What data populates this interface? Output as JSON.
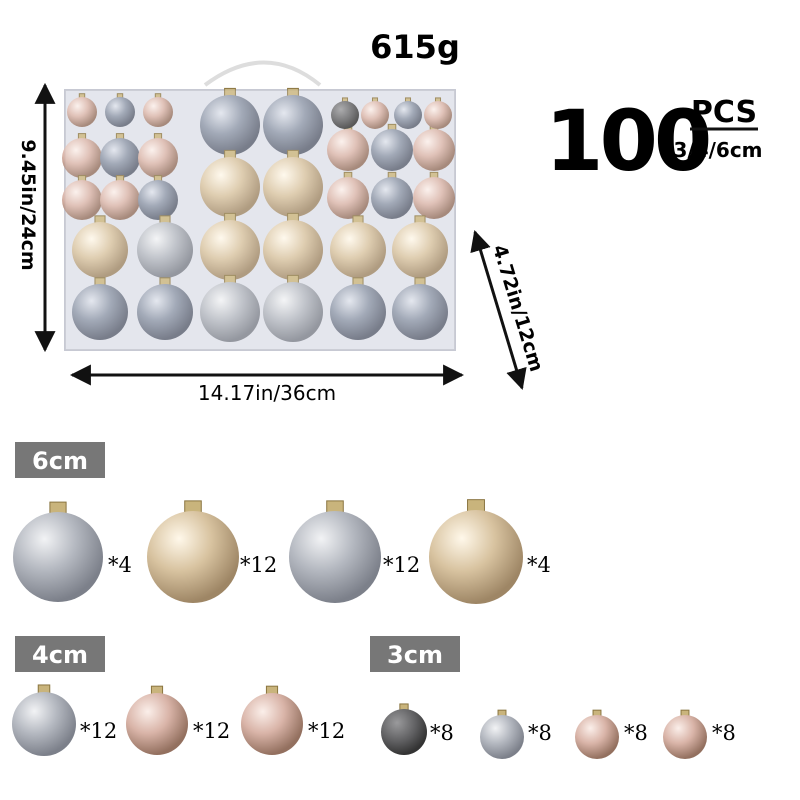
{
  "weight": "615g",
  "count": "100",
  "unit": "PCS",
  "sizes": "3/4/6cm",
  "dimensions": {
    "height": "9.45in/24cm",
    "width": "14.17in/36cm",
    "depth": "4.72in/12cm"
  },
  "sections": [
    {
      "title": "6cm",
      "items": [
        "*4",
        "*12",
        "*12",
        "*4"
      ]
    },
    {
      "title": "4cm",
      "items": [
        "*12",
        "*12",
        "*12"
      ]
    },
    {
      "title": "3cm",
      "items": [
        "*8",
        "*8",
        "*8",
        "*8"
      ]
    }
  ]
}
